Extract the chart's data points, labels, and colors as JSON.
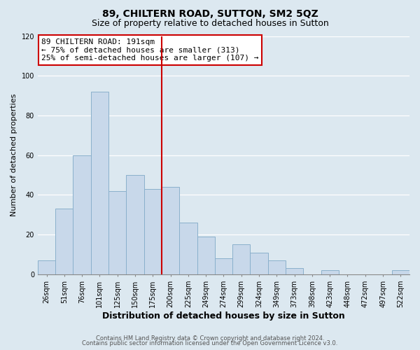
{
  "title": "89, CHILTERN ROAD, SUTTON, SM2 5QZ",
  "subtitle": "Size of property relative to detached houses in Sutton",
  "xlabel": "Distribution of detached houses by size in Sutton",
  "ylabel": "Number of detached properties",
  "categories": [
    "26sqm",
    "51sqm",
    "76sqm",
    "101sqm",
    "125sqm",
    "150sqm",
    "175sqm",
    "200sqm",
    "225sqm",
    "249sqm",
    "274sqm",
    "299sqm",
    "324sqm",
    "349sqm",
    "373sqm",
    "398sqm",
    "423sqm",
    "448sqm",
    "472sqm",
    "497sqm",
    "522sqm"
  ],
  "values": [
    7,
    33,
    60,
    92,
    42,
    50,
    43,
    44,
    26,
    19,
    8,
    15,
    11,
    7,
    3,
    0,
    2,
    0,
    0,
    0,
    2
  ],
  "bar_color": "#c8d8ea",
  "bar_edge_color": "#8ab0cc",
  "vline_color": "#cc0000",
  "annotation_text_line1": "89 CHILTERN ROAD: 191sqm",
  "annotation_text_line2": "← 75% of detached houses are smaller (313)",
  "annotation_text_line3": "25% of semi-detached houses are larger (107) →",
  "annotation_box_color": "#ffffff",
  "annotation_box_edge": "#cc0000",
  "ylim": [
    0,
    120
  ],
  "yticks": [
    0,
    20,
    40,
    60,
    80,
    100,
    120
  ],
  "footer1": "Contains HM Land Registry data © Crown copyright and database right 2024.",
  "footer2": "Contains public sector information licensed under the Open Government Licence v3.0.",
  "figure_bg": "#dce8f0",
  "axes_bg": "#dce8f0",
  "grid_color": "#ffffff",
  "title_fontsize": 10,
  "subtitle_fontsize": 9,
  "xlabel_fontsize": 9,
  "ylabel_fontsize": 8,
  "tick_fontsize": 7,
  "annotation_fontsize": 8,
  "footer_fontsize": 6
}
